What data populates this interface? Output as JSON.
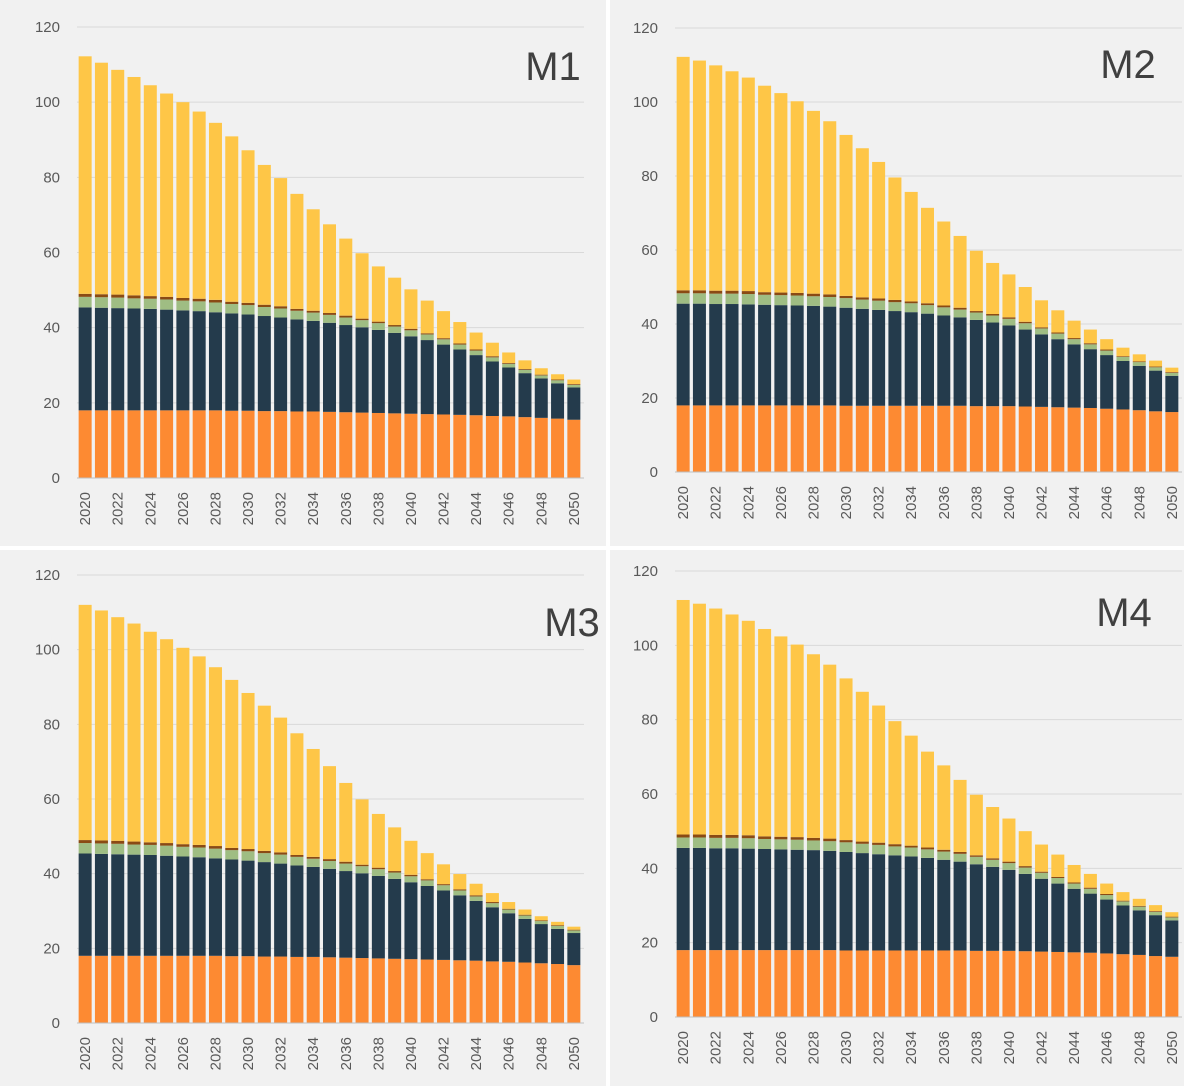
{
  "colors": {
    "orange": "#fd8a32",
    "navy": "#243b4c",
    "green": "#9fbd83",
    "brown": "#8a4a14",
    "yellow": "#fec647",
    "grid": "#d9d9d9",
    "background": "#f1f1f1"
  },
  "chart_data": [
    {
      "type": "bar",
      "stacked": true,
      "title": "M1",
      "ylim": [
        0,
        120
      ],
      "yticks": [
        "0",
        "20",
        "40",
        "60",
        "80",
        "100",
        "120"
      ],
      "xtick_labels": [
        "2020",
        "2022",
        "2024",
        "2026",
        "2028",
        "2030",
        "2032",
        "2034",
        "2036",
        "2038",
        "2040",
        "2042",
        "2044",
        "2046",
        "2048",
        "2050"
      ],
      "categories": [
        "2020",
        "2021",
        "2022",
        "2023",
        "2024",
        "2025",
        "2026",
        "2027",
        "2028",
        "2029",
        "2030",
        "2031",
        "2032",
        "2033",
        "2034",
        "2035",
        "2036",
        "2037",
        "2038",
        "2039",
        "2040",
        "2041",
        "2042",
        "2043",
        "2044",
        "2045",
        "2046",
        "2047",
        "2048",
        "2049",
        "2050"
      ],
      "grid": true,
      "legend": "none",
      "series": [
        {
          "color": "orange",
          "values": [
            18.0,
            18.0,
            18.0,
            18.0,
            18.0,
            18.0,
            18.0,
            18.0,
            18.0,
            17.9,
            17.9,
            17.8,
            17.8,
            17.7,
            17.7,
            17.6,
            17.5,
            17.4,
            17.3,
            17.2,
            17.1,
            17.0,
            16.9,
            16.8,
            16.7,
            16.5,
            16.4,
            16.2,
            16.0,
            15.8,
            15.5
          ]
        },
        {
          "color": "navy",
          "values": [
            27.4,
            27.3,
            27.2,
            27.1,
            27.0,
            26.8,
            26.6,
            26.4,
            26.1,
            25.9,
            25.6,
            25.3,
            24.9,
            24.5,
            24.1,
            23.7,
            23.2,
            22.7,
            22.1,
            21.4,
            20.6,
            19.7,
            18.6,
            17.4,
            16.0,
            14.5,
            13.0,
            11.7,
            10.5,
            9.4,
            8.6
          ]
        },
        {
          "color": "green",
          "values": [
            2.8,
            2.8,
            2.8,
            2.7,
            2.7,
            2.7,
            2.6,
            2.6,
            2.6,
            2.5,
            2.5,
            2.4,
            2.4,
            2.3,
            2.2,
            2.1,
            2.0,
            1.9,
            1.8,
            1.7,
            1.6,
            1.5,
            1.4,
            1.3,
            1.2,
            1.1,
            1.0,
            0.9,
            0.8,
            0.8,
            0.7
          ]
        },
        {
          "color": "brown",
          "values": [
            0.8,
            0.8,
            0.8,
            0.8,
            0.7,
            0.7,
            0.7,
            0.7,
            0.7,
            0.6,
            0.6,
            0.6,
            0.6,
            0.5,
            0.5,
            0.5,
            0.5,
            0.4,
            0.4,
            0.4,
            0.4,
            0.3,
            0.3,
            0.3,
            0.3,
            0.3,
            0.2,
            0.2,
            0.2,
            0.2,
            0.2
          ]
        },
        {
          "color": "yellow",
          "values": [
            63.2,
            61.6,
            59.8,
            58.1,
            56.1,
            54.1,
            52.1,
            49.8,
            47.1,
            44.0,
            40.6,
            37.2,
            34.1,
            30.6,
            27.0,
            23.6,
            20.5,
            17.4,
            14.7,
            12.6,
            10.5,
            8.7,
            7.2,
            5.7,
            4.5,
            3.6,
            2.8,
            2.3,
            1.7,
            1.4,
            1.2
          ]
        }
      ]
    },
    {
      "type": "bar",
      "stacked": true,
      "title": "M2",
      "ylim": [
        0,
        120
      ],
      "yticks": [
        "0",
        "20",
        "40",
        "60",
        "80",
        "100",
        "120"
      ],
      "xtick_labels": [
        "2020",
        "2022",
        "2024",
        "2026",
        "2028",
        "2030",
        "2032",
        "2034",
        "2036",
        "2038",
        "2040",
        "2042",
        "2044",
        "2046",
        "2048",
        "2050"
      ],
      "categories": [
        "2020",
        "2021",
        "2022",
        "2023",
        "2024",
        "2025",
        "2026",
        "2027",
        "2028",
        "2029",
        "2030",
        "2031",
        "2032",
        "2033",
        "2034",
        "2035",
        "2036",
        "2037",
        "2038",
        "2039",
        "2040",
        "2041",
        "2042",
        "2043",
        "2044",
        "2045",
        "2046",
        "2047",
        "2048",
        "2049",
        "2050"
      ],
      "grid": true,
      "legend": "none",
      "series": [
        {
          "color": "orange",
          "values": [
            18.0,
            18.0,
            18.0,
            18.0,
            18.0,
            18.0,
            18.0,
            18.0,
            18.0,
            18.0,
            17.9,
            17.9,
            17.9,
            17.9,
            17.9,
            17.9,
            17.9,
            17.9,
            17.8,
            17.8,
            17.8,
            17.7,
            17.6,
            17.5,
            17.4,
            17.3,
            17.1,
            16.9,
            16.7,
            16.4,
            16.2
          ]
        },
        {
          "color": "navy",
          "values": [
            27.5,
            27.5,
            27.4,
            27.4,
            27.3,
            27.2,
            27.1,
            27.0,
            26.9,
            26.7,
            26.5,
            26.2,
            25.9,
            25.6,
            25.3,
            24.9,
            24.4,
            23.9,
            23.3,
            22.6,
            21.8,
            20.8,
            19.6,
            18.4,
            17.1,
            15.9,
            14.5,
            13.1,
            12.0,
            11.0,
            9.8
          ]
        },
        {
          "color": "green",
          "values": [
            2.8,
            2.8,
            2.8,
            2.8,
            2.8,
            2.7,
            2.7,
            2.7,
            2.6,
            2.6,
            2.6,
            2.5,
            2.5,
            2.4,
            2.4,
            2.3,
            2.2,
            2.1,
            2.0,
            1.9,
            1.8,
            1.7,
            1.6,
            1.5,
            1.4,
            1.3,
            1.2,
            1.1,
            1.0,
            0.9,
            0.8
          ]
        },
        {
          "color": "brown",
          "values": [
            0.8,
            0.8,
            0.8,
            0.8,
            0.8,
            0.7,
            0.7,
            0.7,
            0.7,
            0.7,
            0.6,
            0.6,
            0.6,
            0.6,
            0.5,
            0.5,
            0.5,
            0.5,
            0.4,
            0.4,
            0.4,
            0.4,
            0.3,
            0.3,
            0.3,
            0.3,
            0.3,
            0.2,
            0.2,
            0.2,
            0.2
          ]
        },
        {
          "color": "yellow",
          "values": [
            63.1,
            62.1,
            60.9,
            59.3,
            57.7,
            55.8,
            53.9,
            51.8,
            49.4,
            46.8,
            43.5,
            40.3,
            36.9,
            33.1,
            29.6,
            25.8,
            22.7,
            19.4,
            16.3,
            13.8,
            11.6,
            9.4,
            7.3,
            6.0,
            4.7,
            3.7,
            2.8,
            2.3,
            1.9,
            1.6,
            1.2
          ]
        }
      ]
    },
    {
      "type": "bar",
      "stacked": true,
      "title": "M3",
      "ylim": [
        0,
        120
      ],
      "yticks": [
        "0",
        "20",
        "40",
        "60",
        "80",
        "100",
        "120"
      ],
      "xtick_labels": [
        "2020",
        "2022",
        "2024",
        "2026",
        "2028",
        "2030",
        "2032",
        "2034",
        "2036",
        "2038",
        "2040",
        "2042",
        "2044",
        "2046",
        "2048",
        "2050"
      ],
      "categories": [
        "2020",
        "2021",
        "2022",
        "2023",
        "2024",
        "2025",
        "2026",
        "2027",
        "2028",
        "2029",
        "2030",
        "2031",
        "2032",
        "2033",
        "2034",
        "2035",
        "2036",
        "2037",
        "2038",
        "2039",
        "2040",
        "2041",
        "2042",
        "2043",
        "2044",
        "2045",
        "2046",
        "2047",
        "2048",
        "2049",
        "2050"
      ],
      "grid": true,
      "legend": "none",
      "series": [
        {
          "color": "orange",
          "values": [
            18.0,
            18.0,
            18.0,
            18.0,
            18.0,
            18.0,
            18.0,
            18.0,
            18.0,
            17.9,
            17.9,
            17.8,
            17.8,
            17.7,
            17.7,
            17.6,
            17.5,
            17.4,
            17.3,
            17.2,
            17.1,
            17.0,
            16.9,
            16.8,
            16.7,
            16.5,
            16.4,
            16.2,
            16.0,
            15.8,
            15.5
          ]
        },
        {
          "color": "navy",
          "values": [
            27.4,
            27.3,
            27.2,
            27.1,
            27.0,
            26.8,
            26.6,
            26.4,
            26.1,
            25.9,
            25.6,
            25.3,
            24.9,
            24.5,
            24.1,
            23.7,
            23.2,
            22.7,
            22.1,
            21.4,
            20.6,
            19.7,
            18.6,
            17.4,
            16.0,
            14.5,
            13.0,
            11.7,
            10.5,
            9.4,
            8.6
          ]
        },
        {
          "color": "green",
          "values": [
            2.8,
            2.8,
            2.8,
            2.7,
            2.7,
            2.7,
            2.6,
            2.6,
            2.6,
            2.5,
            2.5,
            2.4,
            2.4,
            2.3,
            2.2,
            2.1,
            2.0,
            1.9,
            1.8,
            1.7,
            1.6,
            1.5,
            1.4,
            1.3,
            1.2,
            1.1,
            1.0,
            0.9,
            0.8,
            0.8,
            0.7
          ]
        },
        {
          "color": "brown",
          "values": [
            0.8,
            0.8,
            0.8,
            0.8,
            0.7,
            0.7,
            0.7,
            0.7,
            0.7,
            0.6,
            0.6,
            0.6,
            0.6,
            0.5,
            0.5,
            0.5,
            0.5,
            0.4,
            0.4,
            0.4,
            0.4,
            0.3,
            0.3,
            0.3,
            0.3,
            0.3,
            0.2,
            0.2,
            0.2,
            0.2,
            0.2
          ]
        },
        {
          "color": "yellow",
          "values": [
            63.0,
            61.6,
            59.9,
            58.4,
            56.4,
            54.6,
            52.6,
            50.5,
            47.9,
            45.0,
            41.8,
            38.9,
            36.1,
            32.6,
            28.9,
            24.9,
            21.1,
            17.5,
            14.4,
            11.7,
            9.1,
            7.0,
            5.3,
            4.1,
            3.1,
            2.4,
            1.8,
            1.4,
            1.1,
            0.9,
            0.8
          ]
        }
      ]
    },
    {
      "type": "bar",
      "stacked": true,
      "title": "M4",
      "ylim": [
        0,
        120
      ],
      "yticks": [
        "0",
        "20",
        "40",
        "60",
        "80",
        "100",
        "120"
      ],
      "xtick_labels": [
        "2020",
        "2022",
        "2024",
        "2026",
        "2028",
        "2030",
        "2032",
        "2034",
        "2036",
        "2038",
        "2040",
        "2042",
        "2044",
        "2046",
        "2048",
        "2050"
      ],
      "categories": [
        "2020",
        "2021",
        "2022",
        "2023",
        "2024",
        "2025",
        "2026",
        "2027",
        "2028",
        "2029",
        "2030",
        "2031",
        "2032",
        "2033",
        "2034",
        "2035",
        "2036",
        "2037",
        "2038",
        "2039",
        "2040",
        "2041",
        "2042",
        "2043",
        "2044",
        "2045",
        "2046",
        "2047",
        "2048",
        "2049",
        "2050"
      ],
      "grid": true,
      "legend": "none",
      "series": [
        {
          "color": "orange",
          "values": [
            18.0,
            18.0,
            18.0,
            18.0,
            18.0,
            18.0,
            18.0,
            18.0,
            18.0,
            18.0,
            17.9,
            17.9,
            17.9,
            17.9,
            17.9,
            17.9,
            17.9,
            17.9,
            17.8,
            17.8,
            17.8,
            17.7,
            17.6,
            17.5,
            17.4,
            17.3,
            17.1,
            16.9,
            16.7,
            16.4,
            16.2
          ]
        },
        {
          "color": "navy",
          "values": [
            27.5,
            27.5,
            27.4,
            27.4,
            27.3,
            27.2,
            27.1,
            27.0,
            26.9,
            26.7,
            26.5,
            26.2,
            25.9,
            25.6,
            25.3,
            24.9,
            24.4,
            23.9,
            23.3,
            22.6,
            21.8,
            20.8,
            19.6,
            18.4,
            17.1,
            15.9,
            14.5,
            13.1,
            12.0,
            11.0,
            9.8
          ]
        },
        {
          "color": "green",
          "values": [
            2.8,
            2.8,
            2.8,
            2.8,
            2.8,
            2.7,
            2.7,
            2.7,
            2.6,
            2.6,
            2.6,
            2.5,
            2.5,
            2.4,
            2.4,
            2.3,
            2.2,
            2.1,
            2.0,
            1.9,
            1.8,
            1.7,
            1.6,
            1.5,
            1.4,
            1.3,
            1.2,
            1.1,
            1.0,
            0.9,
            0.8
          ]
        },
        {
          "color": "brown",
          "values": [
            0.8,
            0.8,
            0.8,
            0.8,
            0.8,
            0.7,
            0.7,
            0.7,
            0.7,
            0.7,
            0.6,
            0.6,
            0.6,
            0.6,
            0.5,
            0.5,
            0.5,
            0.5,
            0.4,
            0.4,
            0.4,
            0.4,
            0.3,
            0.3,
            0.3,
            0.3,
            0.3,
            0.2,
            0.2,
            0.2,
            0.2
          ]
        },
        {
          "color": "yellow",
          "values": [
            63.1,
            62.1,
            60.9,
            59.3,
            57.7,
            55.8,
            53.9,
            51.8,
            49.4,
            46.8,
            43.5,
            40.3,
            36.9,
            33.1,
            29.6,
            25.8,
            22.7,
            19.4,
            16.3,
            13.8,
            11.6,
            9.4,
            7.3,
            6.0,
            4.7,
            3.7,
            2.8,
            2.3,
            1.9,
            1.6,
            1.2
          ]
        }
      ]
    }
  ]
}
